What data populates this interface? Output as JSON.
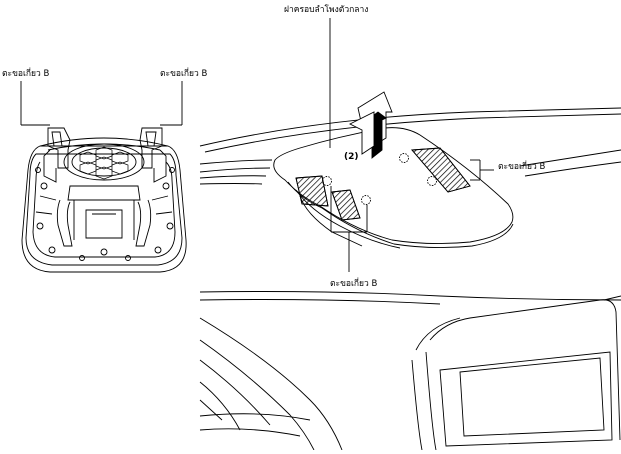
{
  "labels": {
    "center_cover": "ฝาครอบลำโพงตัวกลาง",
    "hook_b_top_left": "ตะขอเกี่ยว B",
    "hook_b_top_middle": "ตะขอเกี่ยว B",
    "hook_b_right": "ตะขอเกี่ยว B",
    "hook_b_bottom": "ตะขอเกี่ยว B",
    "step_number": "(2)"
  },
  "colors": {
    "line": "#000000",
    "hatch": "#000000",
    "arrow_fill": "#000000",
    "background": "#ffffff"
  }
}
